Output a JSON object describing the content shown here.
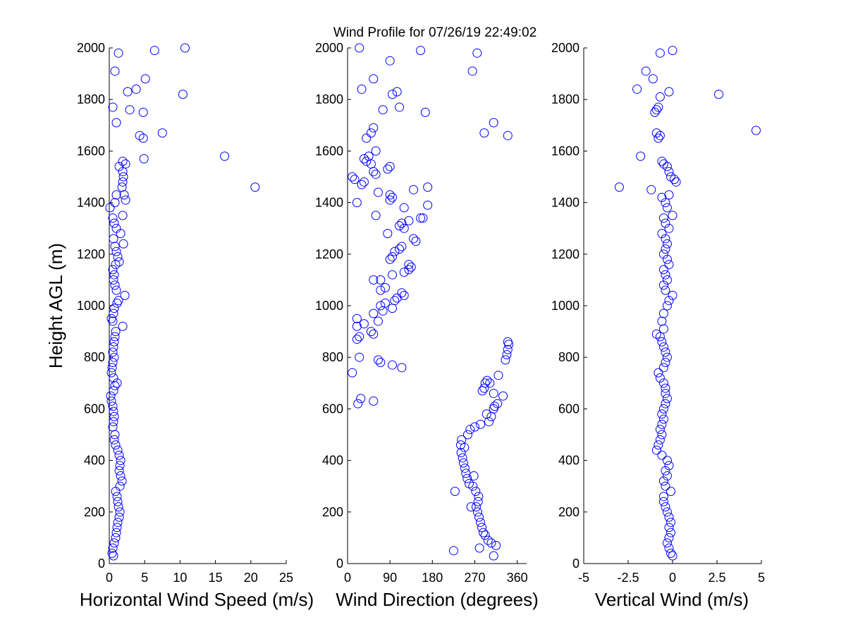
{
  "figure": {
    "title": "Wind Profile for  07/26/19 22:49:02",
    "marker_color": "#0000ff",
    "background": "#ffffff"
  },
  "chart_data": [
    {
      "type": "scatter",
      "xlabel": "Horizontal Wind Speed (m/s)",
      "ylabel": "Height AGL (m)",
      "xlim": [
        0,
        25
      ],
      "ylim": [
        0,
        2000
      ],
      "xticks": [
        0,
        5,
        10,
        15,
        20,
        25
      ],
      "xtick_labels": [
        "0",
        "5",
        "10",
        "15",
        "20",
        "25"
      ],
      "yticks": [
        0,
        200,
        400,
        600,
        800,
        1000,
        1200,
        1400,
        1600,
        1800,
        2000
      ],
      "ytick_labels": [
        "0",
        "200",
        "400",
        "600",
        "800",
        "1000",
        "1200",
        "1400",
        "1600",
        "1800",
        "2000"
      ],
      "grid": false,
      "points": [
        [
          0.6,
          30
        ],
        [
          0.4,
          40
        ],
        [
          0.5,
          60
        ],
        [
          0.7,
          80
        ],
        [
          0.9,
          100
        ],
        [
          1.0,
          120
        ],
        [
          1.1,
          140
        ],
        [
          1.2,
          160
        ],
        [
          1.4,
          180
        ],
        [
          1.5,
          200
        ],
        [
          1.3,
          220
        ],
        [
          1.2,
          240
        ],
        [
          1.1,
          260
        ],
        [
          0.9,
          280
        ],
        [
          1.5,
          300
        ],
        [
          1.8,
          320
        ],
        [
          1.6,
          340
        ],
        [
          1.4,
          360
        ],
        [
          1.5,
          380
        ],
        [
          1.6,
          400
        ],
        [
          1.4,
          420
        ],
        [
          1.2,
          440
        ],
        [
          0.9,
          460
        ],
        [
          0.7,
          480
        ],
        [
          0.8,
          500
        ],
        [
          0.5,
          530
        ],
        [
          0.6,
          550
        ],
        [
          0.7,
          570
        ],
        [
          0.6,
          590
        ],
        [
          0.5,
          610
        ],
        [
          0.3,
          630
        ],
        [
          0.2,
          650
        ],
        [
          0.6,
          670
        ],
        [
          0.8,
          690
        ],
        [
          1.1,
          700
        ],
        [
          0.6,
          720
        ],
        [
          0.3,
          740
        ],
        [
          0.4,
          760
        ],
        [
          0.5,
          780
        ],
        [
          0.7,
          800
        ],
        [
          0.5,
          820
        ],
        [
          0.6,
          840
        ],
        [
          0.7,
          860
        ],
        [
          0.8,
          880
        ],
        [
          0.9,
          900
        ],
        [
          1.9,
          920
        ],
        [
          0.5,
          940
        ],
        [
          0.3,
          950
        ],
        [
          0.6,
          970
        ],
        [
          0.7,
          990
        ],
        [
          1.1,
          1010
        ],
        [
          1.3,
          1020
        ],
        [
          2.2,
          1040
        ],
        [
          1.0,
          1060
        ],
        [
          0.8,
          1080
        ],
        [
          0.6,
          1100
        ],
        [
          0.7,
          1120
        ],
        [
          0.5,
          1140
        ],
        [
          0.9,
          1160
        ],
        [
          1.4,
          1170
        ],
        [
          1.2,
          1190
        ],
        [
          1.0,
          1210
        ],
        [
          0.8,
          1230
        ],
        [
          2.0,
          1240
        ],
        [
          0.6,
          1260
        ],
        [
          1.6,
          1280
        ],
        [
          1.0,
          1300
        ],
        [
          0.7,
          1320
        ],
        [
          0.5,
          1340
        ],
        [
          1.9,
          1350
        ],
        [
          0.1,
          1380
        ],
        [
          0.8,
          1400
        ],
        [
          2.3,
          1410
        ],
        [
          2.1,
          1430
        ],
        [
          1.0,
          1430
        ],
        [
          1.8,
          1460
        ],
        [
          1.9,
          1480
        ],
        [
          2.0,
          1500
        ],
        [
          1.9,
          1520
        ],
        [
          1.4,
          1540
        ],
        [
          2.3,
          1550
        ],
        [
          1.9,
          1560
        ],
        [
          4.9,
          1570
        ],
        [
          16.3,
          1580
        ],
        [
          20.6,
          1460
        ],
        [
          4.8,
          1650
        ],
        [
          4.3,
          1660
        ],
        [
          7.5,
          1670
        ],
        [
          1.0,
          1710
        ],
        [
          4.8,
          1750
        ],
        [
          2.9,
          1760
        ],
        [
          0.5,
          1770
        ],
        [
          10.4,
          1820
        ],
        [
          2.6,
          1830
        ],
        [
          3.8,
          1840
        ],
        [
          5.1,
          1880
        ],
        [
          0.8,
          1910
        ],
        [
          1.3,
          1980
        ],
        [
          6.4,
          1990
        ],
        [
          10.7,
          2000
        ]
      ]
    },
    {
      "type": "scatter",
      "xlabel": "Wind Direction (degrees)",
      "ylabel": "",
      "xlim": [
        0,
        380
      ],
      "ylim": [
        0,
        2000
      ],
      "xticks": [
        0,
        90,
        180,
        270,
        360
      ],
      "xtick_labels": [
        "0",
        "90",
        "180",
        "270",
        "360"
      ],
      "yticks": [
        0,
        200,
        400,
        600,
        800,
        1000,
        1200,
        1400,
        1600,
        1800,
        2000
      ],
      "ytick_labels": [
        "0",
        "200",
        "400",
        "600",
        "800",
        "1000",
        "1200",
        "1400",
        "1600",
        "1800",
        "2000"
      ],
      "grid": false,
      "points": [
        [
          310,
          30
        ],
        [
          225,
          50
        ],
        [
          280,
          60
        ],
        [
          315,
          70
        ],
        [
          305,
          80
        ],
        [
          298,
          90
        ],
        [
          292,
          110
        ],
        [
          288,
          120
        ],
        [
          285,
          140
        ],
        [
          282,
          160
        ],
        [
          279,
          180
        ],
        [
          276,
          200
        ],
        [
          273,
          220
        ],
        [
          262,
          220
        ],
        [
          277,
          240
        ],
        [
          278,
          260
        ],
        [
          272,
          280
        ],
        [
          228,
          280
        ],
        [
          266,
          300
        ],
        [
          258,
          310
        ],
        [
          254,
          330
        ],
        [
          268,
          340
        ],
        [
          251,
          350
        ],
        [
          249,
          370
        ],
        [
          246,
          390
        ],
        [
          244,
          410
        ],
        [
          241,
          430
        ],
        [
          248,
          450
        ],
        [
          240,
          460
        ],
        [
          242,
          480
        ],
        [
          255,
          500
        ],
        [
          260,
          520
        ],
        [
          270,
          530
        ],
        [
          282,
          540
        ],
        [
          300,
          550
        ],
        [
          305,
          570
        ],
        [
          295,
          580
        ],
        [
          310,
          600
        ],
        [
          312,
          610
        ],
        [
          318,
          620
        ],
        [
          310,
          660
        ],
        [
          330,
          650
        ],
        [
          286,
          670
        ],
        [
          290,
          680
        ],
        [
          292,
          700
        ],
        [
          296,
          710
        ],
        [
          302,
          700
        ],
        [
          320,
          730
        ],
        [
          335,
          790
        ],
        [
          338,
          810
        ],
        [
          340,
          830
        ],
        [
          342,
          850
        ],
        [
          340,
          860
        ],
        [
          22,
          620
        ],
        [
          28,
          640
        ],
        [
          55,
          630
        ],
        [
          10,
          740
        ],
        [
          70,
          780
        ],
        [
          115,
          760
        ],
        [
          95,
          770
        ],
        [
          65,
          790
        ],
        [
          25,
          800
        ],
        [
          20,
          870
        ],
        [
          25,
          880
        ],
        [
          55,
          890
        ],
        [
          50,
          900
        ],
        [
          20,
          920
        ],
        [
          35,
          930
        ],
        [
          20,
          950
        ],
        [
          65,
          940
        ],
        [
          55,
          970
        ],
        [
          75,
          980
        ],
        [
          95,
          990
        ],
        [
          70,
          1000
        ],
        [
          80,
          1010
        ],
        [
          100,
          1020
        ],
        [
          105,
          1030
        ],
        [
          120,
          1040
        ],
        [
          115,
          1050
        ],
        [
          70,
          1060
        ],
        [
          80,
          1070
        ],
        [
          70,
          1100
        ],
        [
          55,
          1100
        ],
        [
          95,
          1120
        ],
        [
          120,
          1130
        ],
        [
          130,
          1140
        ],
        [
          135,
          1150
        ],
        [
          130,
          1160
        ],
        [
          90,
          1180
        ],
        [
          95,
          1190
        ],
        [
          100,
          1210
        ],
        [
          110,
          1220
        ],
        [
          115,
          1230
        ],
        [
          145,
          1250
        ],
        [
          140,
          1260
        ],
        [
          85,
          1280
        ],
        [
          120,
          1300
        ],
        [
          110,
          1310
        ],
        [
          115,
          1320
        ],
        [
          130,
          1330
        ],
        [
          160,
          1340
        ],
        [
          155,
          1340
        ],
        [
          60,
          1350
        ],
        [
          120,
          1380
        ],
        [
          170,
          1390
        ],
        [
          20,
          1400
        ],
        [
          90,
          1410
        ],
        [
          95,
          1420
        ],
        [
          90,
          1430
        ],
        [
          65,
          1440
        ],
        [
          140,
          1450
        ],
        [
          170,
          1460
        ],
        [
          30,
          1470
        ],
        [
          35,
          1480
        ],
        [
          15,
          1490
        ],
        [
          10,
          1500
        ],
        [
          60,
          1510
        ],
        [
          55,
          1520
        ],
        [
          85,
          1530
        ],
        [
          90,
          1540
        ],
        [
          50,
          1550
        ],
        [
          40,
          1560
        ],
        [
          35,
          1570
        ],
        [
          45,
          1580
        ],
        [
          60,
          1600
        ],
        [
          40,
          1650
        ],
        [
          50,
          1670
        ],
        [
          55,
          1690
        ],
        [
          340,
          1660
        ],
        [
          290,
          1670
        ],
        [
          310,
          1710
        ],
        [
          165,
          1750
        ],
        [
          110,
          1770
        ],
        [
          75,
          1760
        ],
        [
          30,
          1840
        ],
        [
          95,
          1820
        ],
        [
          105,
          1830
        ],
        [
          55,
          1880
        ],
        [
          90,
          1950
        ],
        [
          265,
          1910
        ],
        [
          25,
          2000
        ],
        [
          155,
          1990
        ],
        [
          275,
          1980
        ]
      ]
    },
    {
      "type": "scatter",
      "xlabel": "Vertical Wind (m/s)",
      "ylabel": "",
      "xlim": [
        -5,
        5
      ],
      "ylim": [
        0,
        2000
      ],
      "xticks": [
        -5,
        -2.5,
        0,
        2.5,
        5
      ],
      "xtick_labels": [
        "-5",
        "-2.5",
        "0",
        "2.5",
        "5"
      ],
      "yticks": [
        0,
        200,
        400,
        600,
        800,
        1000,
        1200,
        1400,
        1600,
        1800,
        2000
      ],
      "ytick_labels": [
        "0",
        "200",
        "400",
        "600",
        "800",
        "1000",
        "1200",
        "1400",
        "1600",
        "1800",
        "2000"
      ],
      "grid": false,
      "points": [
        [
          0.0,
          30
        ],
        [
          -0.1,
          40
        ],
        [
          -0.2,
          60
        ],
        [
          -0.3,
          80
        ],
        [
          -0.2,
          100
        ],
        [
          -0.1,
          120
        ],
        [
          -0.2,
          140
        ],
        [
          -0.1,
          160
        ],
        [
          -0.2,
          180
        ],
        [
          -0.3,
          200
        ],
        [
          -0.4,
          220
        ],
        [
          -0.5,
          240
        ],
        [
          -0.5,
          260
        ],
        [
          -0.1,
          280
        ],
        [
          -0.4,
          300
        ],
        [
          -0.5,
          320
        ],
        [
          -0.3,
          340
        ],
        [
          -0.4,
          360
        ],
        [
          -0.2,
          380
        ],
        [
          -0.3,
          400
        ],
        [
          -0.6,
          420
        ],
        [
          -0.9,
          440
        ],
        [
          -0.8,
          460
        ],
        [
          -0.7,
          480
        ],
        [
          -0.6,
          500
        ],
        [
          -0.7,
          520
        ],
        [
          -0.6,
          540
        ],
        [
          -0.5,
          560
        ],
        [
          -0.6,
          580
        ],
        [
          -0.5,
          600
        ],
        [
          -0.4,
          620
        ],
        [
          -0.3,
          640
        ],
        [
          -0.4,
          660
        ],
        [
          -0.4,
          680
        ],
        [
          -0.5,
          700
        ],
        [
          -0.7,
          720
        ],
        [
          -0.8,
          740
        ],
        [
          -0.5,
          760
        ],
        [
          -0.4,
          780
        ],
        [
          -0.3,
          800
        ],
        [
          -0.4,
          820
        ],
        [
          -0.5,
          840
        ],
        [
          -0.6,
          860
        ],
        [
          -0.7,
          880
        ],
        [
          -0.9,
          890
        ],
        [
          -0.5,
          910
        ],
        [
          -0.6,
          940
        ],
        [
          -0.5,
          970
        ],
        [
          -0.3,
          1000
        ],
        [
          -0.2,
          1020
        ],
        [
          0.0,
          1040
        ],
        [
          -0.4,
          1060
        ],
        [
          -0.5,
          1080
        ],
        [
          -0.3,
          1100
        ],
        [
          -0.4,
          1120
        ],
        [
          -0.5,
          1140
        ],
        [
          -0.2,
          1160
        ],
        [
          -0.3,
          1180
        ],
        [
          -0.5,
          1200
        ],
        [
          -0.4,
          1220
        ],
        [
          -0.3,
          1240
        ],
        [
          -0.4,
          1260
        ],
        [
          -0.6,
          1280
        ],
        [
          -0.2,
          1300
        ],
        [
          -0.4,
          1320
        ],
        [
          -0.5,
          1340
        ],
        [
          0.0,
          1350
        ],
        [
          -0.3,
          1380
        ],
        [
          -0.4,
          1400
        ],
        [
          -0.6,
          1420
        ],
        [
          -0.2,
          1430
        ],
        [
          -1.2,
          1450
        ],
        [
          -3.0,
          1460
        ],
        [
          0.2,
          1480
        ],
        [
          0.1,
          1490
        ],
        [
          -0.1,
          1500
        ],
        [
          -0.2,
          1520
        ],
        [
          -0.3,
          1540
        ],
        [
          -0.5,
          1550
        ],
        [
          -0.6,
          1560
        ],
        [
          -1.8,
          1580
        ],
        [
          -0.8,
          1650
        ],
        [
          -0.7,
          1660
        ],
        [
          -0.9,
          1670
        ],
        [
          4.7,
          1680
        ],
        [
          -1.0,
          1750
        ],
        [
          -0.9,
          1760
        ],
        [
          -0.8,
          1770
        ],
        [
          -0.7,
          1810
        ],
        [
          2.6,
          1820
        ],
        [
          -0.2,
          1830
        ],
        [
          -2.0,
          1840
        ],
        [
          -1.1,
          1880
        ],
        [
          -1.5,
          1910
        ],
        [
          -0.7,
          1980
        ],
        [
          0.0,
          1990
        ]
      ]
    }
  ]
}
